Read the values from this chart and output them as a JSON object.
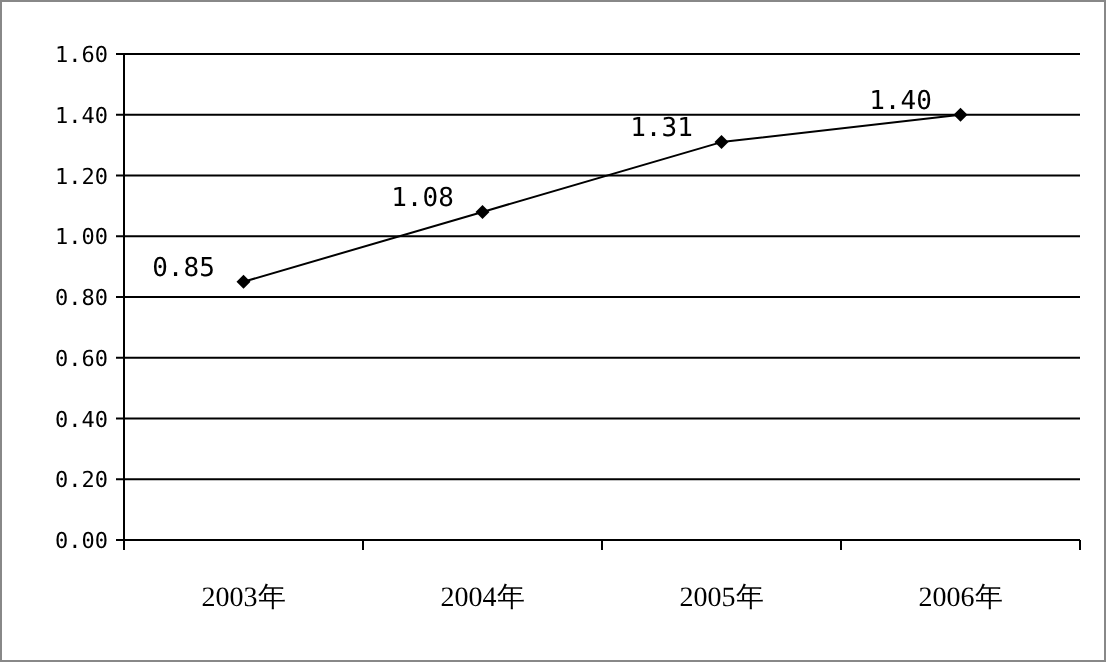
{
  "chart_data": {
    "type": "line",
    "categories": [
      "2003年",
      "2004年",
      "2005年",
      "2006年"
    ],
    "series": [
      {
        "color": "#000000",
        "values": [
          0.85,
          1.08,
          1.31,
          1.4
        ],
        "value_labels": [
          "0.85",
          "1.08",
          "1.31",
          "1.40"
        ]
      }
    ],
    "ylim": [
      0,
      1.6
    ],
    "yticks": [
      {
        "value": 0,
        "label": "0.00"
      },
      {
        "value": 0.2,
        "label": "0.20"
      },
      {
        "value": 0.4,
        "label": "0.40"
      },
      {
        "value": 0.6,
        "label": "0.60"
      },
      {
        "value": 0.8,
        "label": "0.80"
      },
      {
        "value": 1,
        "label": "1.00"
      },
      {
        "value": 1.2,
        "label": "1.20"
      },
      {
        "value": 1.4,
        "label": "1.40"
      },
      {
        "value": 1.6,
        "label": "1.60"
      }
    ],
    "grid": "y",
    "marker": "diamond",
    "line_style": "solid"
  }
}
